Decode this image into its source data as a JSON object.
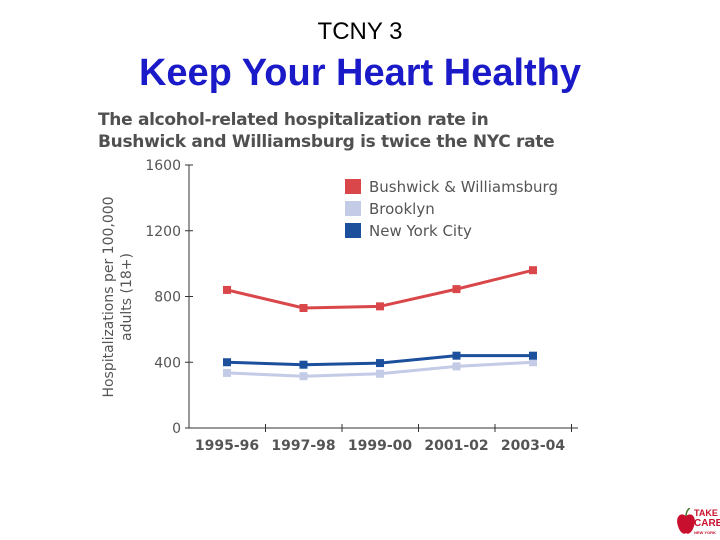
{
  "slide": {
    "tag": "TCNY 3",
    "title": "Keep Your Heart Healthy"
  },
  "logo": {
    "line1": "TAKE",
    "line2": "CARE",
    "line3": "NEW YORK"
  },
  "chart_data": {
    "type": "line",
    "title": "The alcohol-related hospitalization rate in Bushwick and Williamsburg is twice the NYC rate",
    "ylabel": "Hospitalizations per 100,000 adults (18+)",
    "xlabel": "",
    "categories": [
      "1995-96",
      "1997-98",
      "1999-00",
      "2001-02",
      "2003-04"
    ],
    "ylim": [
      0,
      1600
    ],
    "yticks": [
      0,
      400,
      800,
      1200,
      1600
    ],
    "grid": false,
    "legend_position": "top-right",
    "series": [
      {
        "name": "Bushwick & Williamsburg",
        "color": "#d9474b",
        "values": [
          840,
          730,
          740,
          845,
          960
        ]
      },
      {
        "name": "Brooklyn",
        "color": "#c3cbe6",
        "values": [
          335,
          315,
          330,
          375,
          400
        ]
      },
      {
        "name": "New York City",
        "color": "#1c4f9c",
        "values": [
          400,
          385,
          395,
          440,
          440
        ]
      }
    ]
  }
}
